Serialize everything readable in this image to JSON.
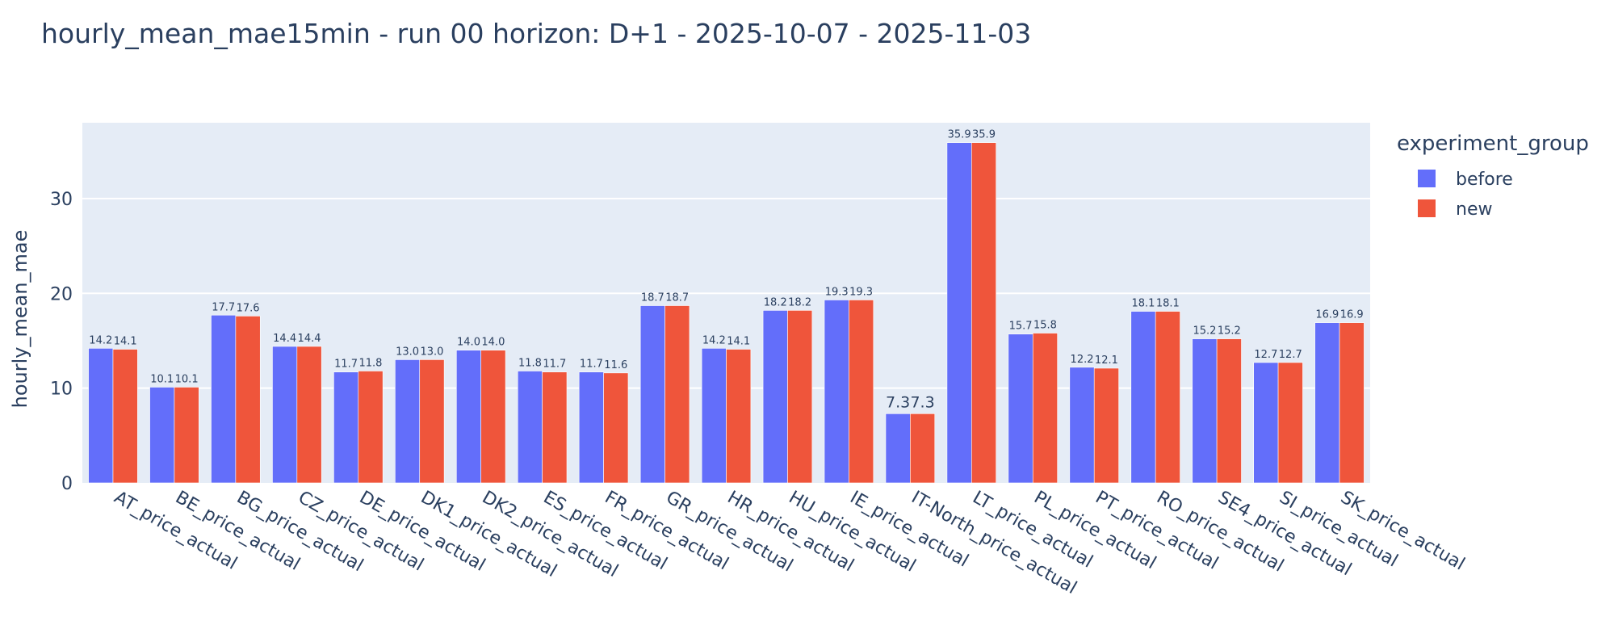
{
  "chart_data": {
    "type": "bar",
    "title": "hourly_mean_mae15min - run 00 horizon: D+1 - 2025-10-07 - 2025-11-03",
    "xlabel": "",
    "ylabel": "hourly_mean_mae",
    "ylim": [
      0,
      38
    ],
    "yticks": [
      0,
      10,
      20,
      30
    ],
    "grid": true,
    "legend_position": "top-right",
    "legend_title": "experiment_group",
    "plot_background": "#e5ecf6",
    "categories": [
      "AT_price_actual",
      "BE_price_actual",
      "BG_price_actual",
      "CZ_price_actual",
      "DE_price_actual",
      "DK1_price_actual",
      "DK2_price_actual",
      "ES_price_actual",
      "FR_price_actual",
      "GR_price_actual",
      "HR_price_actual",
      "HU_price_actual",
      "IE_price_actual",
      "IT-North_price_actual",
      "LT_price_actual",
      "PL_price_actual",
      "PT_price_actual",
      "RO_price_actual",
      "SE4_price_actual",
      "SI_price_actual",
      "SK_price_actual"
    ],
    "series": [
      {
        "name": "before",
        "color": "#636efa",
        "values": [
          14.2,
          10.1,
          17.7,
          14.4,
          11.7,
          13.0,
          14.0,
          11.8,
          11.7,
          18.7,
          14.2,
          18.2,
          19.3,
          7.3,
          35.9,
          15.7,
          12.2,
          18.1,
          15.2,
          12.7,
          16.9
        ],
        "labels": [
          "14.2",
          "10.1",
          "17.7",
          "14.4",
          "11.7",
          "13.0",
          "14.0",
          "11.8",
          "11.7",
          "18.7",
          "14.2",
          "18.2",
          "19.3",
          "7.3",
          "35.9",
          "15.7",
          "12.2",
          "18.1",
          "15.2",
          "12.7",
          "16.9"
        ]
      },
      {
        "name": "new",
        "color": "#ef553b",
        "values": [
          14.1,
          10.1,
          17.6,
          14.4,
          11.8,
          13.0,
          14.0,
          11.7,
          11.6,
          18.7,
          14.1,
          18.2,
          19.3,
          7.3,
          35.9,
          15.8,
          12.1,
          18.1,
          15.2,
          12.7,
          16.9
        ],
        "labels": [
          "14.1",
          "10.1",
          "17.6",
          "14.4",
          "11.8",
          "13.0",
          "14.0",
          "11.7",
          "11.6",
          "18.7",
          "14.1",
          "18.2",
          "19.3",
          "7.3",
          "35.9",
          "15.8",
          "12.1",
          "18.1",
          "15.2",
          "12.7",
          "16.9"
        ]
      }
    ]
  }
}
